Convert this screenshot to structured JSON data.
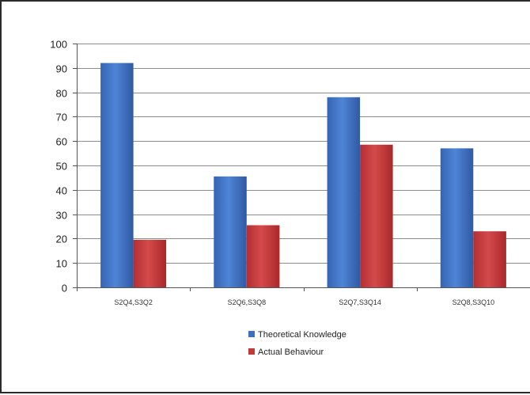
{
  "chart_data": {
    "type": "bar",
    "title": "",
    "xlabel": "",
    "ylabel": "",
    "categories": [
      "S2Q4,S3Q2",
      "S2Q6,S3Q8",
      "S2Q7,S3Q14",
      "S2Q8,S3Q10"
    ],
    "series": [
      {
        "name": "Theoretical Knowledge",
        "values": [
          92,
          45.5,
          78,
          57
        ],
        "color": "#3f6fbf"
      },
      {
        "name": "Actual Behaviour",
        "values": [
          19.5,
          25.5,
          58.5,
          23
        ],
        "color": "#c0393b"
      }
    ],
    "ylim": [
      0,
      100
    ],
    "yticks": [
      0,
      10,
      20,
      30,
      40,
      50,
      60,
      70,
      80,
      90,
      100
    ],
    "grid": true,
    "legend_position": "bottom-center"
  }
}
